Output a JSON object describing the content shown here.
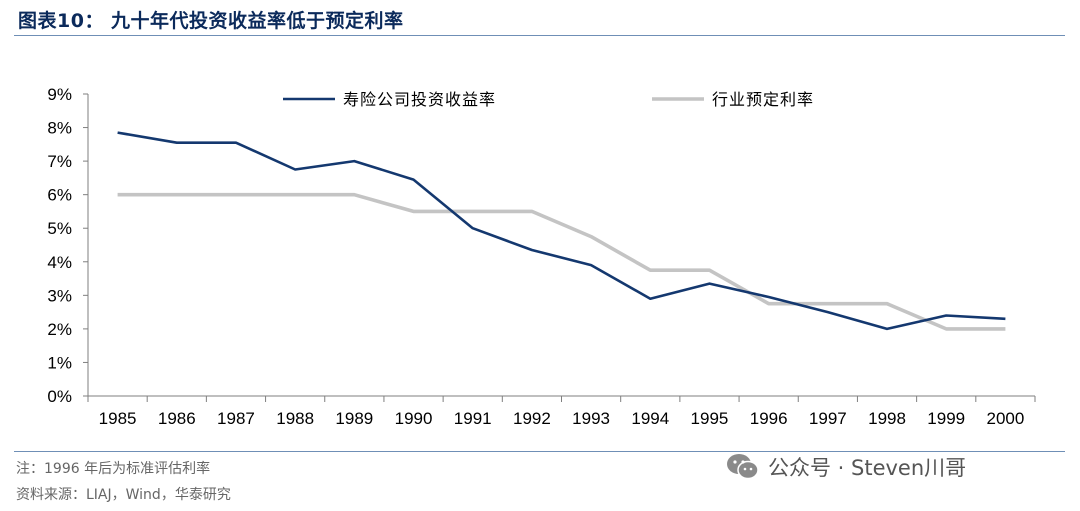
{
  "title": "图表10： 九十年代投资收益率低于预定利率",
  "footer": {
    "note": "注：1996 年后为标准评估利率",
    "source": "资料来源：LIAJ，Wind，华泰研究"
  },
  "watermark": {
    "text": "公众号 · Steven川哥",
    "icon": "wechat-icon"
  },
  "colors": {
    "series1": "#14386f",
    "series2": "#c4c4c4",
    "axis": "#7f7f7f",
    "title": "#0b2a5b"
  },
  "chart_data": {
    "type": "line",
    "x": [
      "1985",
      "1986",
      "1987",
      "1988",
      "1989",
      "1990",
      "1991",
      "1992",
      "1993",
      "1994",
      "1995",
      "1996",
      "1997",
      "1998",
      "1999",
      "2000"
    ],
    "series": [
      {
        "name": "寿险公司投资收益率",
        "values": [
          7.85,
          7.55,
          7.55,
          6.75,
          7.0,
          6.45,
          5.0,
          4.35,
          3.9,
          2.9,
          3.35,
          2.95,
          2.5,
          2.0,
          2.4,
          2.3
        ]
      },
      {
        "name": "行业预定利率",
        "values": [
          6.0,
          6.0,
          6.0,
          6.0,
          6.0,
          5.5,
          5.5,
          5.5,
          4.75,
          3.75,
          3.75,
          2.75,
          2.75,
          2.75,
          2.0,
          2.0
        ]
      }
    ],
    "ylim": [
      0,
      9
    ],
    "yticks": [
      "0%",
      "1%",
      "2%",
      "3%",
      "4%",
      "5%",
      "6%",
      "7%",
      "8%",
      "9%"
    ],
    "grid": false,
    "legend_position": "top"
  }
}
